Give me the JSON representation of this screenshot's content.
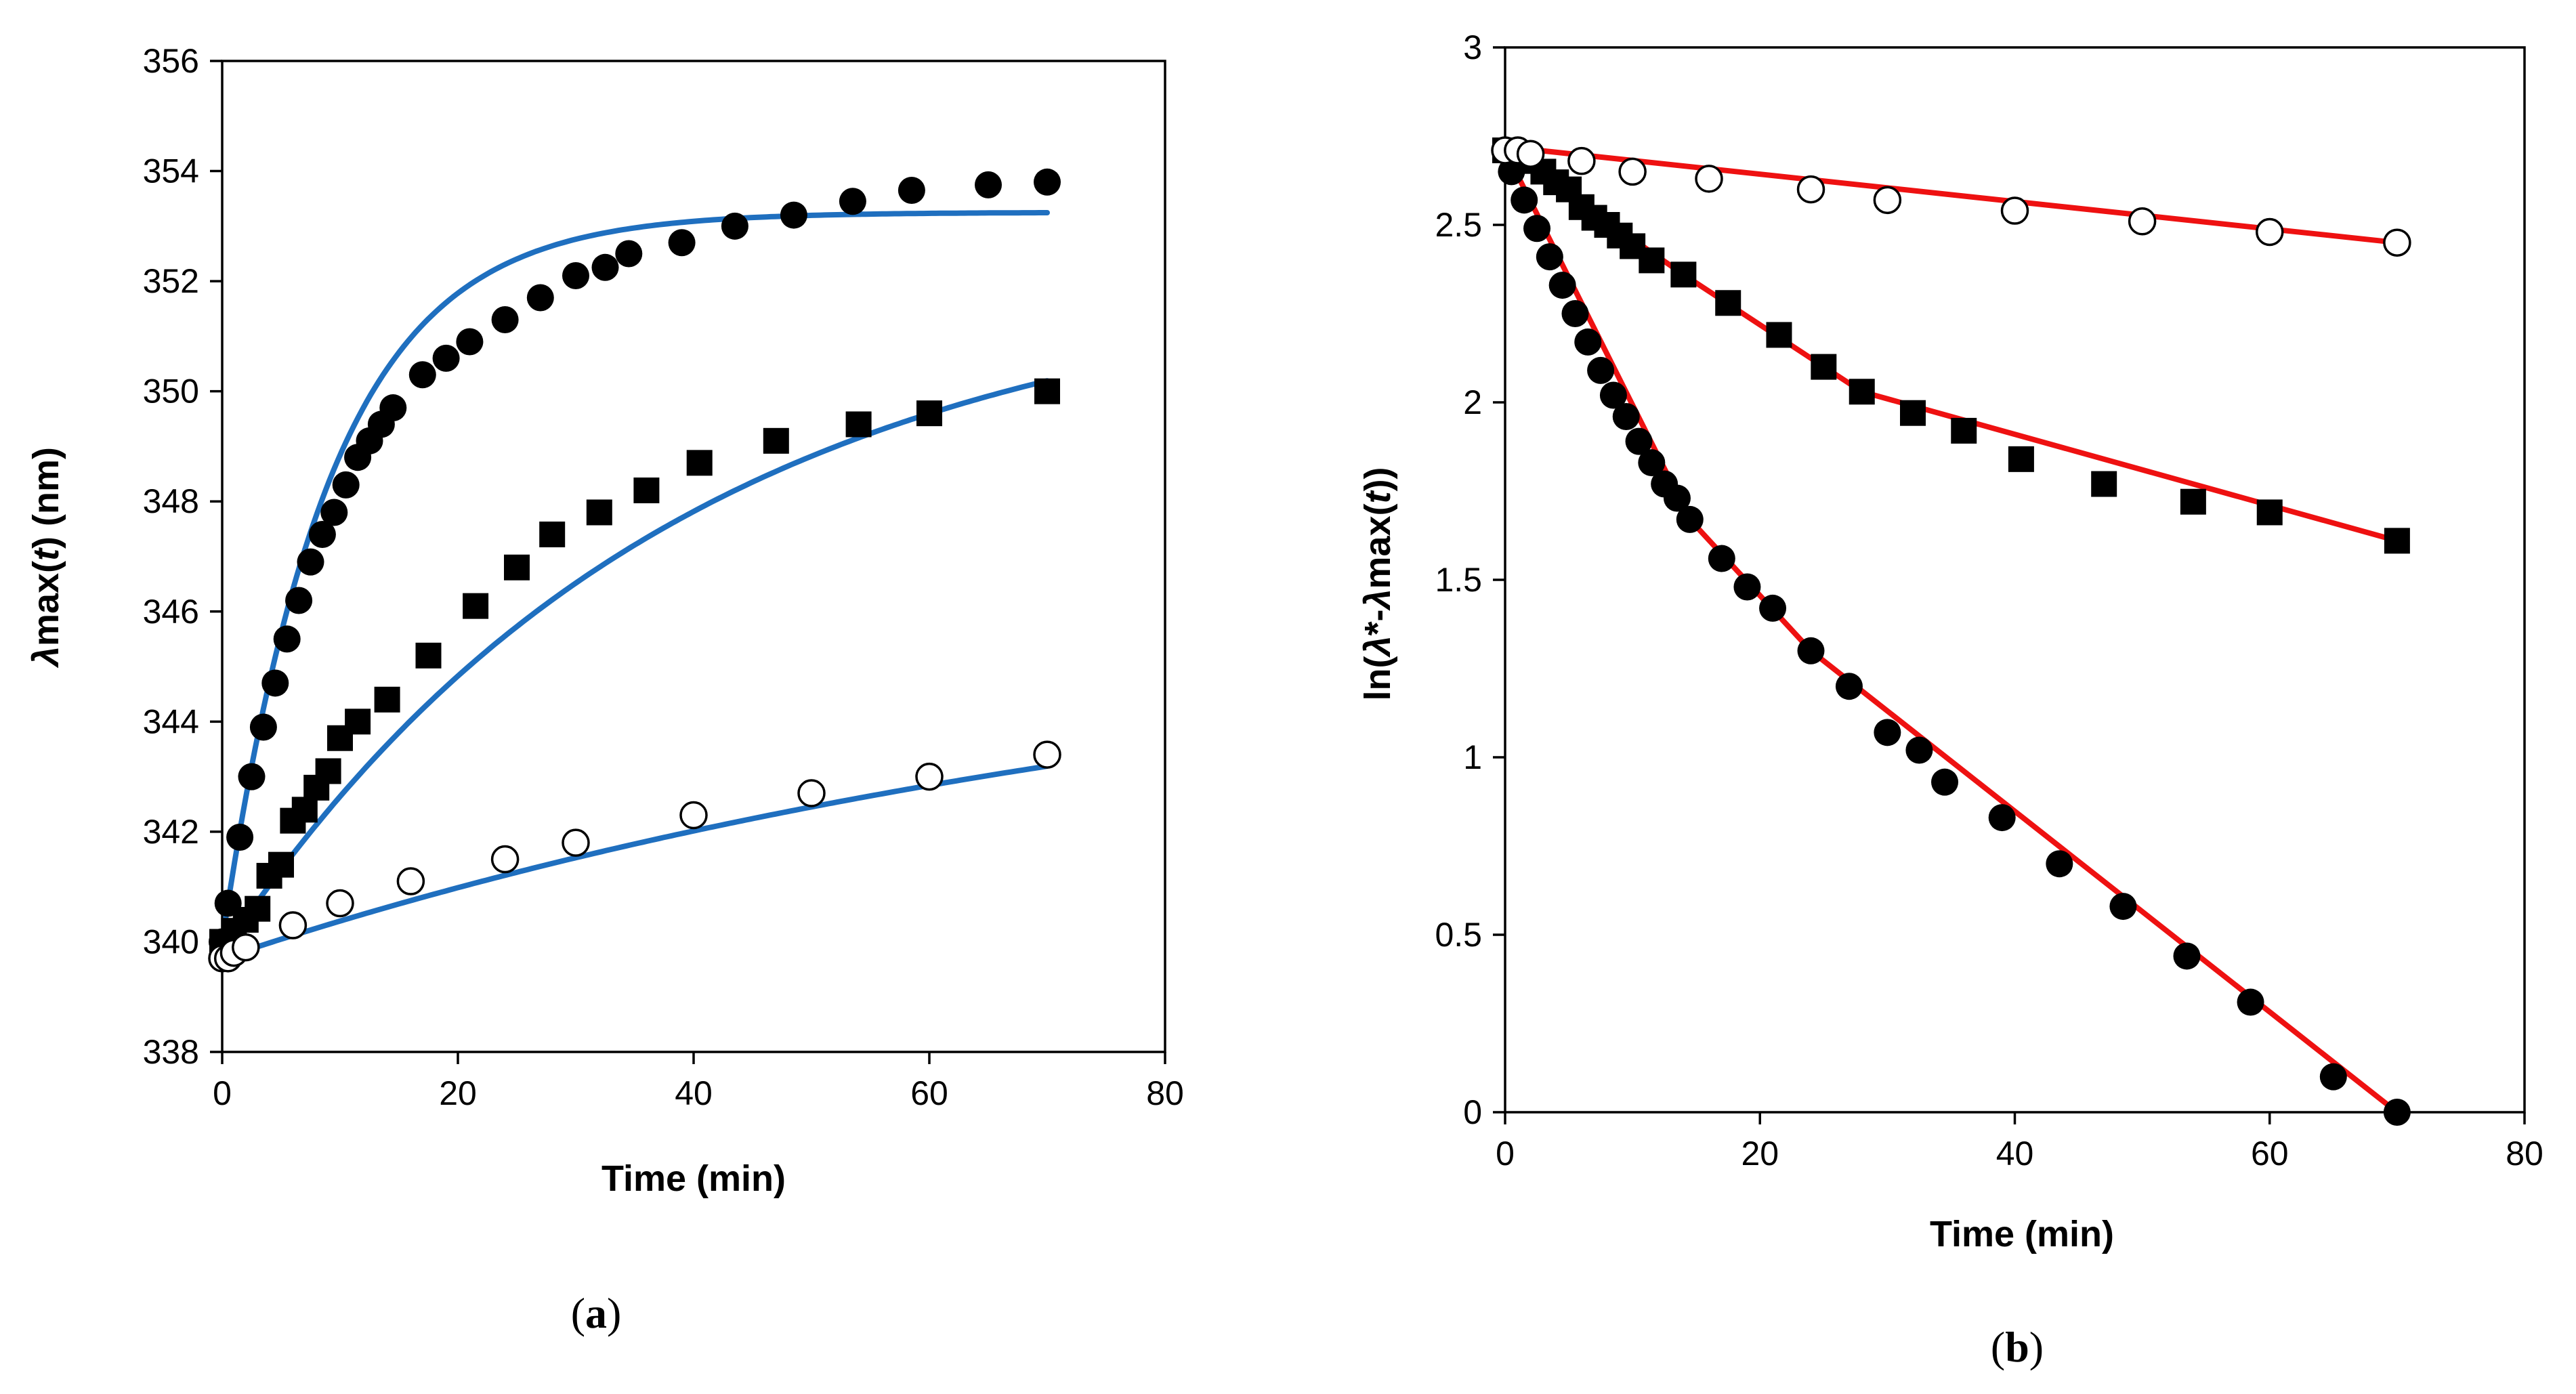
{
  "chart_data": [
    {
      "type": "scatter",
      "panel_label": "a",
      "xlabel": "Time (min)",
      "ylabel": "λmax(t) (nm)",
      "ylabel_parts": {
        "symbol": "λ",
        "name": "max(",
        "var": "t",
        "unit": ") (nm)"
      },
      "xlim": [
        0,
        80
      ],
      "ylim": [
        338,
        356
      ],
      "xticks": [
        0,
        20,
        40,
        60,
        80
      ],
      "yticks": [
        338,
        340,
        342,
        344,
        346,
        348,
        350,
        352,
        354,
        356
      ],
      "grid": false,
      "colors": {
        "fit": "#1f6fbf",
        "marker": "#000000"
      },
      "series": [
        {
          "name": "filled circles",
          "marker": "circle-filled",
          "x": [
            0,
            0.5,
            1.5,
            2.5,
            3.5,
            4.5,
            5.5,
            6.5,
            7.5,
            8.5,
            9.5,
            10.5,
            11.5,
            12.5,
            13.5,
            14.5,
            17,
            19,
            21,
            24,
            27,
            30,
            32.5,
            34.5,
            39,
            43.5,
            48.5,
            53.5,
            58.5,
            65,
            70
          ],
          "y": [
            340,
            340.7,
            341.9,
            343,
            343.9,
            344.7,
            345.5,
            346.2,
            346.9,
            347.4,
            347.8,
            348.3,
            348.8,
            349.1,
            349.4,
            349.7,
            350.3,
            350.6,
            350.9,
            351.3,
            351.7,
            352.1,
            352.25,
            352.5,
            352.7,
            353,
            353.2,
            353.45,
            353.65,
            353.75,
            353.8
          ]
        },
        {
          "name": "filled squares",
          "marker": "square-filled",
          "x": [
            0,
            1,
            2,
            3,
            4,
            5,
            6,
            7,
            8,
            9,
            10,
            11.5,
            14,
            17.5,
            21.5,
            25,
            28,
            32,
            36,
            40.5,
            47,
            54,
            60,
            70
          ],
          "y": [
            340,
            340.2,
            340.4,
            340.6,
            341.2,
            341.4,
            342.2,
            342.4,
            342.8,
            343.1,
            343.7,
            344,
            344.4,
            345.2,
            346.1,
            346.8,
            347.4,
            347.8,
            348.2,
            348.7,
            349.1,
            349.4,
            349.6,
            350
          ]
        },
        {
          "name": "open circles",
          "marker": "circle-open",
          "x": [
            0,
            0.5,
            1,
            2,
            6,
            10,
            16,
            24,
            30,
            40,
            50,
            60,
            70
          ],
          "y": [
            339.7,
            339.7,
            339.8,
            339.9,
            340.3,
            340.7,
            341.1,
            341.5,
            341.8,
            342.3,
            342.7,
            343,
            343.4
          ]
        }
      ],
      "fits": [
        {
          "name": "fit filled circles",
          "model": "exponential",
          "y0": 340,
          "yinf": 353.25,
          "k": 0.11,
          "x_range": [
            0,
            70
          ]
        },
        {
          "name": "fit filled squares",
          "model": "exponential",
          "y0": 339.8,
          "yinf": 352.2,
          "k": 0.026,
          "x_range": [
            0,
            70
          ]
        },
        {
          "name": "fit open circles",
          "model": "exponential",
          "y0": 339.7,
          "yinf": 346.2,
          "k": 0.011,
          "x_range": [
            0,
            70
          ]
        }
      ]
    },
    {
      "type": "scatter",
      "panel_label": "b",
      "xlabel": "Time (min)",
      "ylabel": "ln(λ*-λmax(t))",
      "ylabel_parts": {
        "prefix": "ln(",
        "symbol1": "λ",
        "mid": "*-",
        "symbol2": "λ",
        "name": "max(",
        "var": "t",
        "suffix": "))"
      },
      "xlim": [
        0,
        80
      ],
      "ylim": [
        0,
        3
      ],
      "xticks": [
        0,
        20,
        40,
        60,
        80
      ],
      "yticks": [
        0,
        0.5,
        1,
        1.5,
        2,
        2.5,
        3
      ],
      "grid": false,
      "colors": {
        "fit": "#ee1111",
        "marker": "#000000"
      },
      "series": [
        {
          "name": "filled circles",
          "marker": "circle-filled",
          "x": [
            0,
            0.5,
            1.5,
            2.5,
            3.5,
            4.5,
            5.5,
            6.5,
            7.5,
            8.5,
            9.5,
            10.5,
            11.5,
            12.5,
            13.5,
            14.5,
            17,
            19,
            21,
            24,
            27,
            30,
            32.5,
            34.5,
            39,
            43.5,
            48.5,
            53.5,
            58.5,
            65,
            70
          ],
          "y": [
            2.71,
            2.65,
            2.57,
            2.49,
            2.41,
            2.33,
            2.25,
            2.17,
            2.09,
            2.02,
            1.96,
            1.89,
            1.83,
            1.77,
            1.73,
            1.67,
            1.56,
            1.48,
            1.42,
            1.3,
            1.2,
            1.07,
            1.02,
            0.93,
            0.83,
            0.7,
            0.58,
            0.44,
            0.31,
            0.1,
            0
          ]
        },
        {
          "name": "filled squares",
          "marker": "square-filled",
          "x": [
            0,
            1,
            2,
            3,
            4,
            5,
            6,
            7,
            8,
            9,
            10,
            11.5,
            14,
            17.5,
            21.5,
            25,
            28,
            32,
            36,
            40.5,
            47,
            54,
            60,
            70
          ],
          "y": [
            2.71,
            2.7,
            2.68,
            2.65,
            2.62,
            2.6,
            2.55,
            2.52,
            2.5,
            2.47,
            2.44,
            2.4,
            2.36,
            2.28,
            2.19,
            2.1,
            2.03,
            1.97,
            1.92,
            1.84,
            1.77,
            1.72,
            1.69,
            1.61
          ]
        },
        {
          "name": "open circles",
          "marker": "circle-open",
          "x": [
            0,
            1,
            2,
            6,
            10,
            16,
            24,
            30,
            40,
            50,
            60,
            70
          ],
          "y": [
            2.71,
            2.71,
            2.7,
            2.68,
            2.65,
            2.63,
            2.6,
            2.57,
            2.54,
            2.51,
            2.48,
            2.45
          ]
        }
      ],
      "fits": [
        {
          "name": "fit filled circles seg1",
          "model": "linear",
          "points": [
            [
              0,
              2.71
            ],
            [
              14.5,
              1.67
            ]
          ]
        },
        {
          "name": "fit filled circles seg2",
          "model": "linear",
          "points": [
            [
              14.5,
              1.67
            ],
            [
              24,
              1.3
            ],
            [
              70,
              0
            ]
          ]
        },
        {
          "name": "fit filled squares seg1",
          "model": "linear",
          "points": [
            [
              0,
              2.71
            ],
            [
              14,
              2.36
            ]
          ]
        },
        {
          "name": "fit filled squares seg2",
          "model": "linear",
          "points": [
            [
              14,
              2.36
            ],
            [
              28,
              2.03
            ],
            [
              70,
              1.61
            ]
          ]
        },
        {
          "name": "fit open circles",
          "model": "linear",
          "points": [
            [
              0,
              2.72
            ],
            [
              70,
              2.45
            ]
          ]
        }
      ]
    }
  ]
}
